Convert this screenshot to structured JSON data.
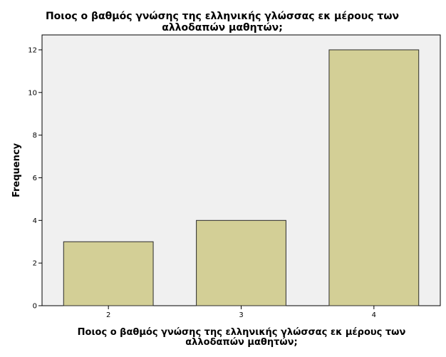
{
  "chart_data": {
    "type": "bar",
    "title_lines": [
      "Ποιος ο βαθμός γνώσης της ελληνικής γλώσσας εκ μέρους των",
      "αλλοδαπών μαθητών;"
    ],
    "xlabel_lines": [
      "Ποιος ο βαθμός γνώσης της ελληνικής γλώσσας εκ μέρους των",
      "αλλοδαπών μαθητών;"
    ],
    "ylabel": "Frequency",
    "categories": [
      "2",
      "3",
      "4"
    ],
    "values": [
      3,
      4,
      12
    ],
    "ylim": [
      0,
      12.7
    ],
    "yticks": [
      "0",
      "2",
      "4",
      "6",
      "8",
      "10",
      "12"
    ],
    "grid": false,
    "legend": "none",
    "colors": {
      "bar_fill": "#d3cf96",
      "bar_stroke": "#2b2b2b",
      "plot_background": "#f0f0f0",
      "axis": "#000000"
    }
  }
}
